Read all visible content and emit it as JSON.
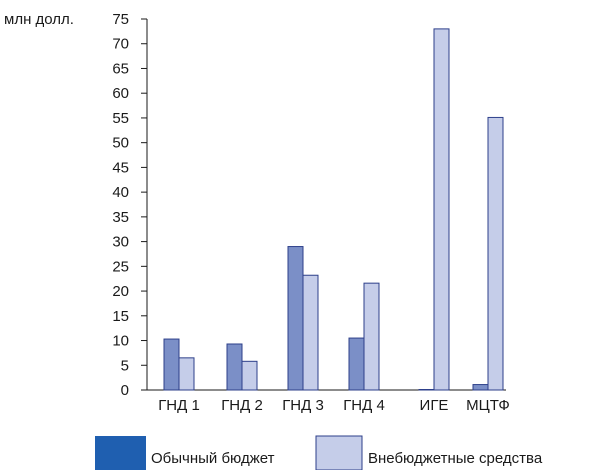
{
  "chart_data": {
    "type": "bar",
    "ylabel": "млн долл.",
    "ylim": [
      0,
      75
    ],
    "yticks": [
      0,
      5,
      10,
      15,
      20,
      25,
      30,
      35,
      40,
      45,
      50,
      55,
      60,
      65,
      70,
      75
    ],
    "categories": [
      "ГНД 1",
      "ГНД 2",
      "ГНД 3",
      "ГНД 4",
      "ИГЕ",
      "МЦТФ"
    ],
    "series": [
      {
        "name": "Обычный бюджет",
        "color": "#7b8fc7",
        "values": [
          10.3,
          9.3,
          29.0,
          10.5,
          0.1,
          1.1
        ]
      },
      {
        "name": "Внебюджетные средства",
        "color": "#c5cde9",
        "values": [
          6.5,
          5.8,
          23.2,
          21.6,
          73.0,
          55.1
        ]
      }
    ],
    "legend": [
      {
        "label": "Обычный бюджет",
        "color": "#1f5fb0"
      },
      {
        "label": "Внебюджетные средства",
        "color": "#c5cde9"
      }
    ],
    "legend_position": "bottom",
    "grid": false
  }
}
